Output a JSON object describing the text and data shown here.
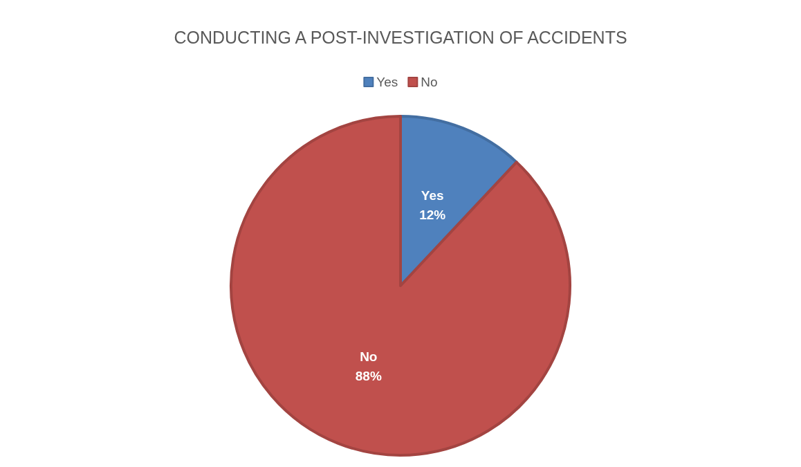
{
  "chart_data": {
    "type": "pie",
    "title": "CONDUCTING A POST-INVESTIGATION OF ACCIDENTS",
    "categories": [
      "Yes",
      "No"
    ],
    "values": [
      12,
      88
    ],
    "value_labels": [
      "12%",
      "88%"
    ],
    "colors": [
      "#4f81bd",
      "#c0504d"
    ],
    "legend": "top"
  }
}
